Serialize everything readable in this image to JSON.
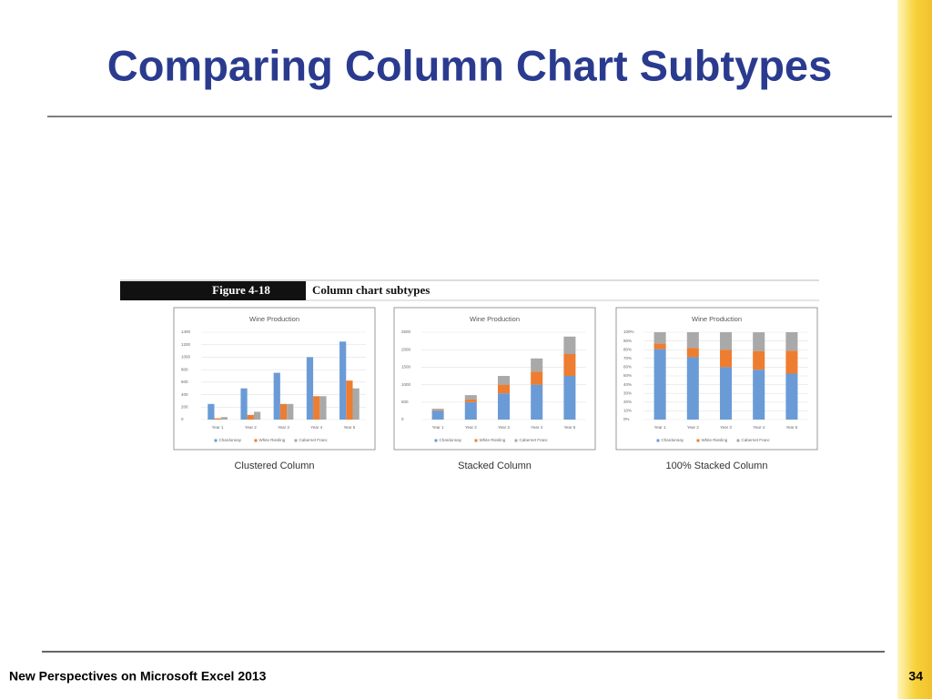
{
  "slide": {
    "title": "Comparing Column Chart Subtypes",
    "figure_label": "Figure 4-18",
    "figure_title": "Column chart subtypes",
    "footer": "New Perspectives on Microsoft Excel 2013",
    "page_number": 34
  },
  "chart_data": [
    {
      "type": "bar",
      "stacked": false,
      "title": "Wine Production",
      "caption": "Clustered Column",
      "categories": [
        "Year 1",
        "Year 2",
        "Year 3",
        "Year 4",
        "Year 5"
      ],
      "series": [
        {
          "name": "Chardonnay",
          "color": "#6a9bd6",
          "values": [
            250,
            500,
            750,
            1000,
            1250
          ]
        },
        {
          "name": "White Riesling",
          "color": "#ed7d31",
          "values": [
            20,
            75,
            250,
            375,
            625
          ]
        },
        {
          "name": "Cabernet Franc",
          "color": "#a9a9a9",
          "values": [
            40,
            125,
            250,
            375,
            500
          ]
        }
      ],
      "ylim": [
        0,
        1400
      ],
      "yticks": [
        0,
        200,
        400,
        600,
        800,
        1000,
        1200,
        1400
      ],
      "grid": true
    },
    {
      "type": "bar",
      "stacked": true,
      "title": "Wine Production",
      "caption": "Stacked Column",
      "categories": [
        "Year 1",
        "Year 2",
        "Year 3",
        "Year 4",
        "Year 5"
      ],
      "series": [
        {
          "name": "Chardonnay",
          "color": "#6a9bd6",
          "values": [
            250,
            500,
            750,
            1000,
            1250
          ]
        },
        {
          "name": "White Riesling",
          "color": "#ed7d31",
          "values": [
            20,
            75,
            250,
            375,
            625
          ]
        },
        {
          "name": "Cabernet Franc",
          "color": "#a9a9a9",
          "values": [
            40,
            125,
            250,
            375,
            500
          ]
        }
      ],
      "ylim": [
        0,
        2500
      ],
      "yticks": [
        0,
        500,
        1000,
        1500,
        2000,
        2500
      ],
      "grid": true
    },
    {
      "type": "bar",
      "stacked": true,
      "title": "Wine Production",
      "caption": "100% Stacked Column",
      "categories": [
        "Year 1",
        "Year 2",
        "Year 3",
        "Year 4",
        "Year 5"
      ],
      "series": [
        {
          "name": "Chardonnay",
          "color": "#6a9bd6",
          "values": [
            80.6,
            71.4,
            60,
            57.1,
            52.6
          ]
        },
        {
          "name": "White Riesling",
          "color": "#ed7d31",
          "values": [
            6.5,
            10.7,
            20,
            21.4,
            26.3
          ]
        },
        {
          "name": "Cabernet Franc",
          "color": "#a9a9a9",
          "values": [
            12.9,
            17.9,
            20,
            21.4,
            21.1
          ]
        }
      ],
      "ylim": [
        0,
        100
      ],
      "yticks": [
        {
          "value": 0,
          "label": "0%"
        },
        {
          "value": 10,
          "label": "10%"
        },
        {
          "value": 20,
          "label": "20%"
        },
        {
          "value": 30,
          "label": "30%"
        },
        {
          "value": 40,
          "label": "40%"
        },
        {
          "value": 50,
          "label": "50%"
        },
        {
          "value": 60,
          "label": "60%"
        },
        {
          "value": 70,
          "label": "70%"
        },
        {
          "value": 80,
          "label": "80%"
        },
        {
          "value": 90,
          "label": "90%"
        },
        {
          "value": 100,
          "label": "100%"
        }
      ],
      "grid": true
    }
  ]
}
